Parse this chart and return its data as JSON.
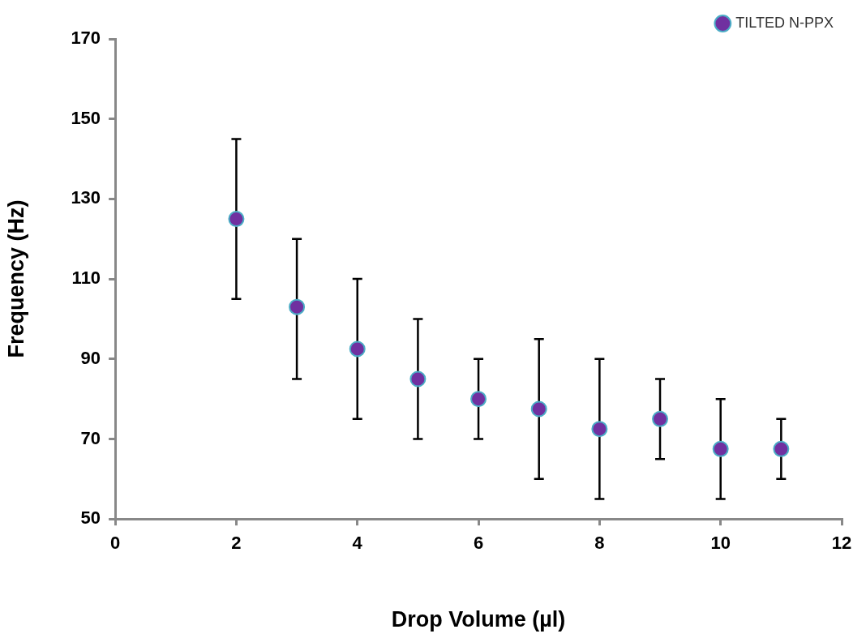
{
  "chart_data": {
    "type": "scatter",
    "xlabel": "Drop Volume (µl)",
    "ylabel": "Frequency (Hz)",
    "x": [
      2,
      3,
      4,
      5,
      6,
      7,
      8,
      9,
      10,
      11
    ],
    "series": [
      {
        "name": "TILTED N-PPX",
        "color": "#7030a0",
        "values": [
          125,
          103,
          92.5,
          85,
          80,
          77.5,
          72.5,
          75,
          67.5,
          67.5
        ],
        "errors": [
          [
            105,
            145
          ],
          [
            85,
            120
          ],
          [
            75,
            110
          ],
          [
            70,
            100
          ],
          [
            70,
            90
          ],
          [
            60,
            95
          ],
          [
            55,
            90
          ],
          [
            65,
            85
          ],
          [
            55,
            80
          ],
          [
            60,
            75
          ]
        ]
      }
    ],
    "xlim": [
      0,
      12
    ],
    "xticks": [
      0,
      2,
      4,
      6,
      8,
      10,
      12
    ],
    "ylim": [
      50,
      170
    ],
    "yticks": [
      50,
      70,
      90,
      110,
      130,
      150,
      170
    ],
    "legend": "top right",
    "marker": "circle"
  }
}
